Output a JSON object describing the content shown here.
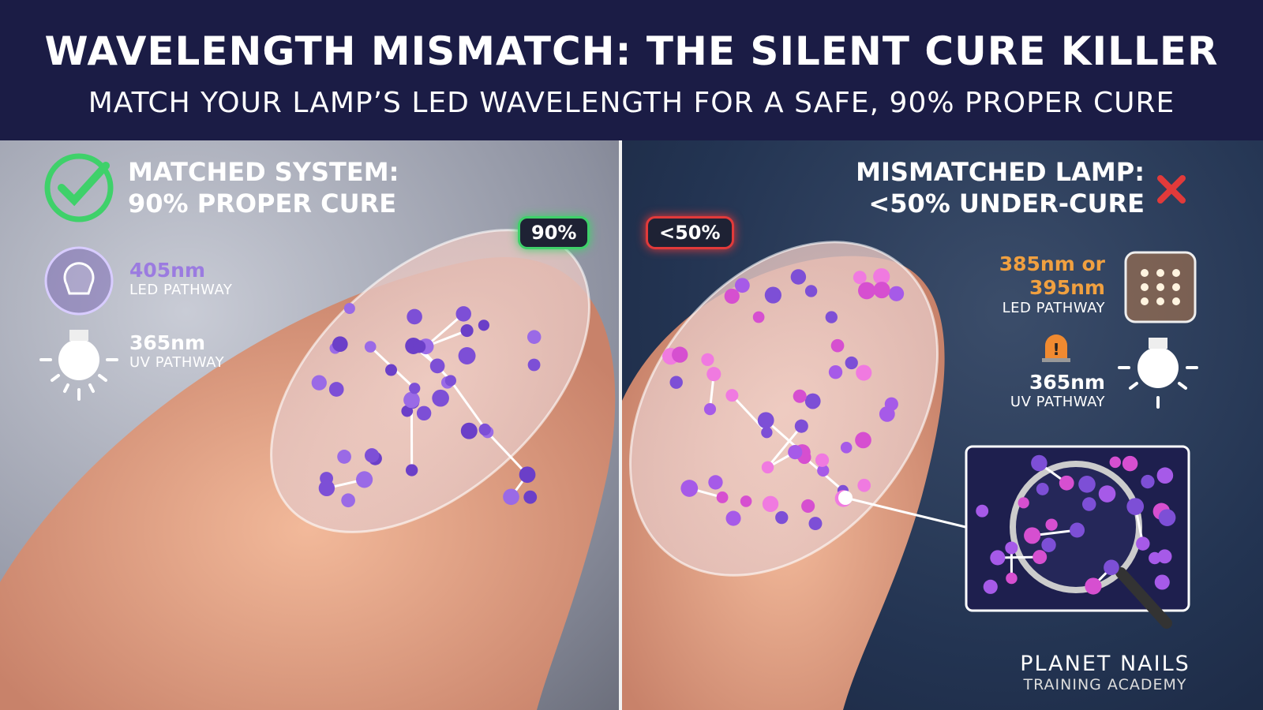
{
  "header": {
    "title": "WAVELENGTH MISMATCH: THE SILENT CURE KILLER",
    "subtitle": "MATCH YOUR LAMP’S LED WAVELENGTH FOR A SAFE, 90% PROPER CURE"
  },
  "left": {
    "heading_line1": "MATCHED SYSTEM:",
    "heading_line2": "90% PROPER CURE",
    "badge": "90%",
    "led_nm": "405nm",
    "led_label": "LED PATHWAY",
    "uv_nm": "365nm",
    "uv_label": "UV PATHWAY",
    "icon": "check-circle-icon",
    "accent": "#3fd16a",
    "led_color": "#9b7be0"
  },
  "right": {
    "heading_line1": "MISMATCHED LAMP:",
    "heading_line2": "<50% UNDER-CURE",
    "badge": "<50%",
    "led_nm_line1": "385nm or",
    "led_nm_line2": "395nm",
    "led_label": "LED PATHWAY",
    "uv_nm": "365nm",
    "uv_label": "UV PATHWAY",
    "icon": "x-mark-icon",
    "accent": "#e23a3a",
    "led_color": "#f0a040"
  },
  "brand": {
    "name": "PLANET NAILS",
    "tagline": "TRAINING ACADEMY"
  }
}
